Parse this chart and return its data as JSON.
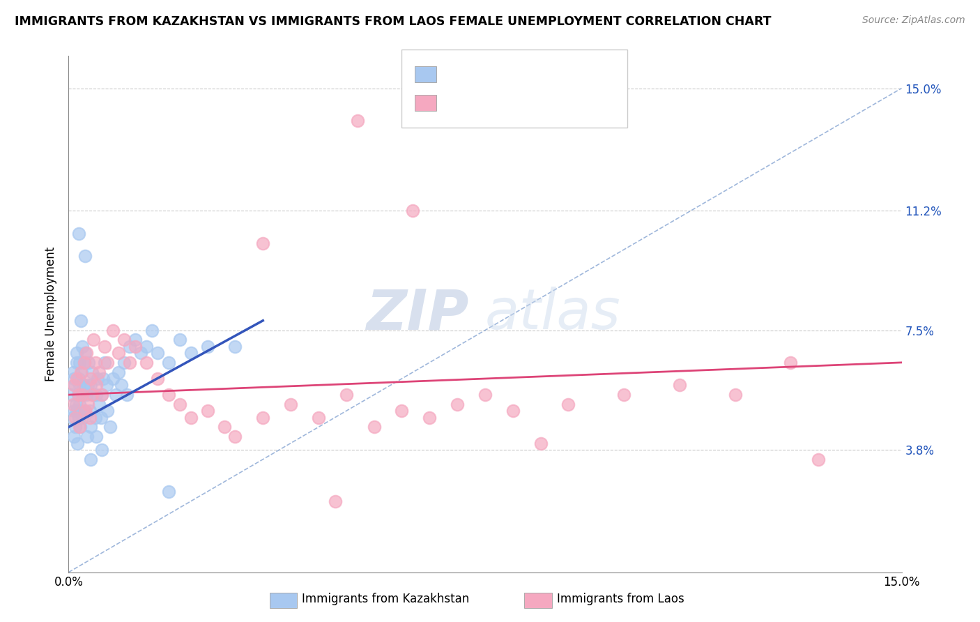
{
  "title": "IMMIGRANTS FROM KAZAKHSTAN VS IMMIGRANTS FROM LAOS FEMALE UNEMPLOYMENT CORRELATION CHART",
  "source": "Source: ZipAtlas.com",
  "ylabel": "Female Unemployment",
  "yticks": [
    3.8,
    7.5,
    11.2,
    15.0
  ],
  "ytick_labels": [
    "3.8%",
    "7.5%",
    "11.2%",
    "15.0%"
  ],
  "xmin": 0.0,
  "xmax": 15.0,
  "ymin": 0.0,
  "ymax": 16.0,
  "color_kaz": "#a8c8f0",
  "color_laos": "#f5a8c0",
  "trendline_kaz_color": "#3355bb",
  "trendline_laos_color": "#dd4477",
  "diag_color": "#7799cc",
  "watermark_color": "#ccd8ee",
  "kaz_x": [
    0.05,
    0.07,
    0.08,
    0.09,
    0.1,
    0.1,
    0.11,
    0.12,
    0.13,
    0.14,
    0.15,
    0.15,
    0.16,
    0.17,
    0.18,
    0.18,
    0.19,
    0.2,
    0.2,
    0.21,
    0.22,
    0.23,
    0.24,
    0.25,
    0.25,
    0.27,
    0.28,
    0.3,
    0.3,
    0.32,
    0.33,
    0.35,
    0.36,
    0.38,
    0.4,
    0.4,
    0.42,
    0.45,
    0.48,
    0.5,
    0.52,
    0.55,
    0.58,
    0.6,
    0.62,
    0.65,
    0.68,
    0.7,
    0.75,
    0.8,
    0.85,
    0.9,
    0.95,
    1.0,
    1.05,
    1.1,
    1.2,
    1.3,
    1.4,
    1.5,
    1.6,
    1.8,
    2.0,
    2.2,
    2.5,
    3.0,
    0.3,
    0.4,
    0.5,
    0.6,
    0.18,
    0.22,
    1.8
  ],
  "kaz_y": [
    5.5,
    4.8,
    6.2,
    5.0,
    4.2,
    6.0,
    5.8,
    4.5,
    5.2,
    6.5,
    5.0,
    6.8,
    4.0,
    5.5,
    6.0,
    4.8,
    5.8,
    5.2,
    6.5,
    4.5,
    5.0,
    6.2,
    4.8,
    5.5,
    7.0,
    5.8,
    6.5,
    5.0,
    6.8,
    5.5,
    4.2,
    5.8,
    6.5,
    5.0,
    5.8,
    4.5,
    6.2,
    5.5,
    4.8,
    5.5,
    6.0,
    5.2,
    4.8,
    5.5,
    6.0,
    6.5,
    5.8,
    5.0,
    4.5,
    6.0,
    5.5,
    6.2,
    5.8,
    6.5,
    5.5,
    7.0,
    7.2,
    6.8,
    7.0,
    7.5,
    6.8,
    6.5,
    7.2,
    6.8,
    7.0,
    7.0,
    9.8,
    3.5,
    4.2,
    3.8,
    10.5,
    7.8,
    2.5
  ],
  "laos_x": [
    0.08,
    0.1,
    0.12,
    0.15,
    0.18,
    0.2,
    0.22,
    0.25,
    0.28,
    0.3,
    0.32,
    0.35,
    0.38,
    0.4,
    0.42,
    0.45,
    0.48,
    0.5,
    0.55,
    0.6,
    0.65,
    0.7,
    0.8,
    0.9,
    1.0,
    1.1,
    1.2,
    1.4,
    1.6,
    1.8,
    2.0,
    2.2,
    2.5,
    2.8,
    3.0,
    3.5,
    4.0,
    4.5,
    5.0,
    5.5,
    6.0,
    6.5,
    7.0,
    7.5,
    8.0,
    9.0,
    10.0,
    11.0,
    12.0,
    13.0,
    3.5,
    5.2,
    13.5,
    4.8,
    6.2,
    8.5
  ],
  "laos_y": [
    5.2,
    5.8,
    4.8,
    6.0,
    5.5,
    4.5,
    6.2,
    5.5,
    6.5,
    5.0,
    6.8,
    5.2,
    4.8,
    6.0,
    5.5,
    7.2,
    6.5,
    5.8,
    6.2,
    5.5,
    7.0,
    6.5,
    7.5,
    6.8,
    7.2,
    6.5,
    7.0,
    6.5,
    6.0,
    5.5,
    5.2,
    4.8,
    5.0,
    4.5,
    4.2,
    4.8,
    5.2,
    4.8,
    5.5,
    4.5,
    5.0,
    4.8,
    5.2,
    5.5,
    5.0,
    5.2,
    5.5,
    5.8,
    5.5,
    6.5,
    10.2,
    14.0,
    3.5,
    2.2,
    11.2,
    4.0
  ],
  "kaz_trend_x0": 0.0,
  "kaz_trend_y0": 4.5,
  "kaz_trend_x1": 3.5,
  "kaz_trend_y1": 7.8,
  "laos_trend_x0": 0.0,
  "laos_trend_y0": 5.5,
  "laos_trend_x1": 15.0,
  "laos_trend_y1": 6.5
}
